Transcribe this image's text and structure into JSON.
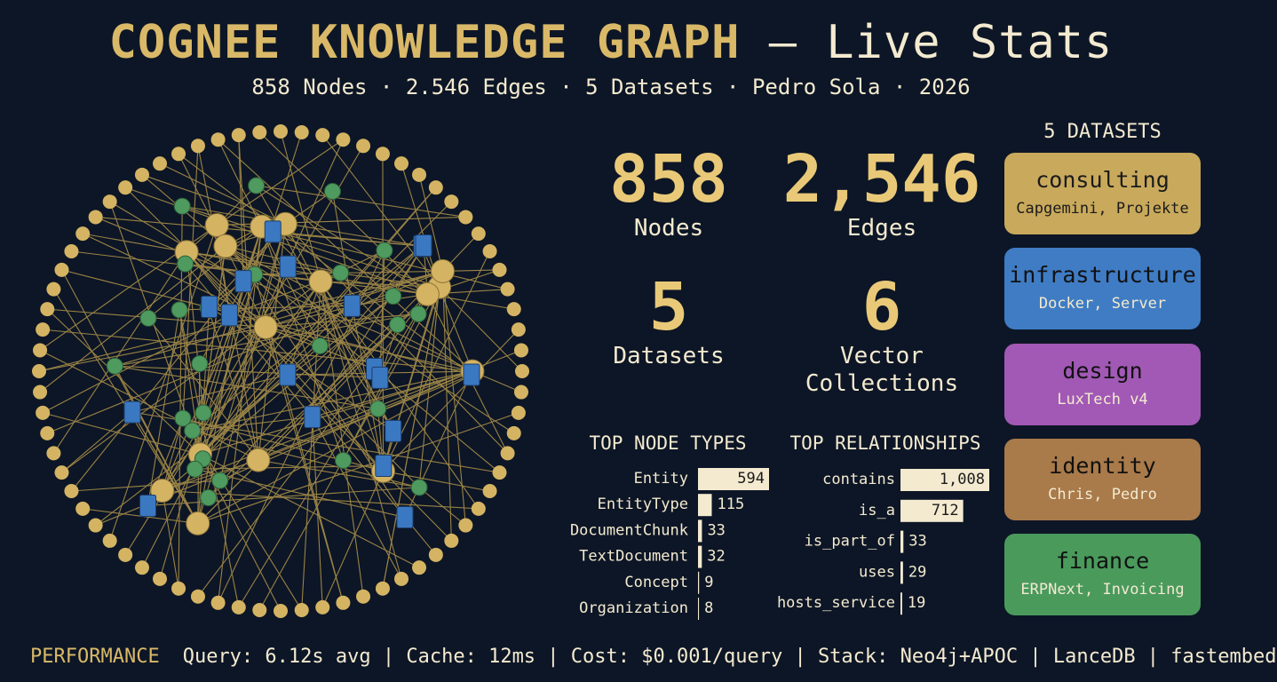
{
  "header": {
    "title": "COGNEE KNOWLEDGE GRAPH",
    "title_suffix": "— Live Stats",
    "subtitle": "858 Nodes · 2.546 Edges · 5 Datasets · Pedro Sola · 2026"
  },
  "stats": [
    {
      "value": "858",
      "label": "Nodes"
    },
    {
      "value": "2,546",
      "label": "Edges"
    },
    {
      "value": "5",
      "label": "Datasets"
    },
    {
      "value": "6",
      "label": "Vector Collections"
    }
  ],
  "chart_data": [
    {
      "type": "hbar",
      "title": "TOP NODE TYPES",
      "categories": [
        "Entity",
        "EntityType",
        "DocumentChunk",
        "TextDocument",
        "Concept",
        "Organization"
      ],
      "values": [
        594,
        115,
        33,
        32,
        9,
        8
      ],
      "color": "#f3ead0"
    },
    {
      "type": "hbar",
      "title": "TOP RELATIONSHIPS",
      "categories": [
        "contains",
        "is_a",
        "is_part_of",
        "uses",
        "hosts_service"
      ],
      "values": [
        1008,
        712,
        33,
        29,
        19
      ],
      "value_labels": [
        "1,008",
        "712",
        "33",
        "29",
        "19"
      ],
      "color": "#f3ead0"
    }
  ],
  "datasets": {
    "title": "5 DATASETS",
    "items": [
      {
        "name": "consulting",
        "description": "Capgemini, Projekte",
        "color": "#c9a95c"
      },
      {
        "name": "infrastructure",
        "description": "Docker, Server",
        "color": "#3f7cc4"
      },
      {
        "name": "design",
        "description": "LuxTech v4",
        "color": "#a159b5"
      },
      {
        "name": "identity",
        "description": "Chris, Pedro",
        "color": "#a97a4a"
      },
      {
        "name": "finance",
        "description": "ERPNext, Invoicing",
        "color": "#4a9a5c"
      }
    ]
  },
  "footer": {
    "label": "PERFORMANCE",
    "text": "Query: 6.12s avg | Cache: 12ms | Cost: $0.001/query | Stack: Neo4j+APOC | LanceDB | fastembed"
  }
}
